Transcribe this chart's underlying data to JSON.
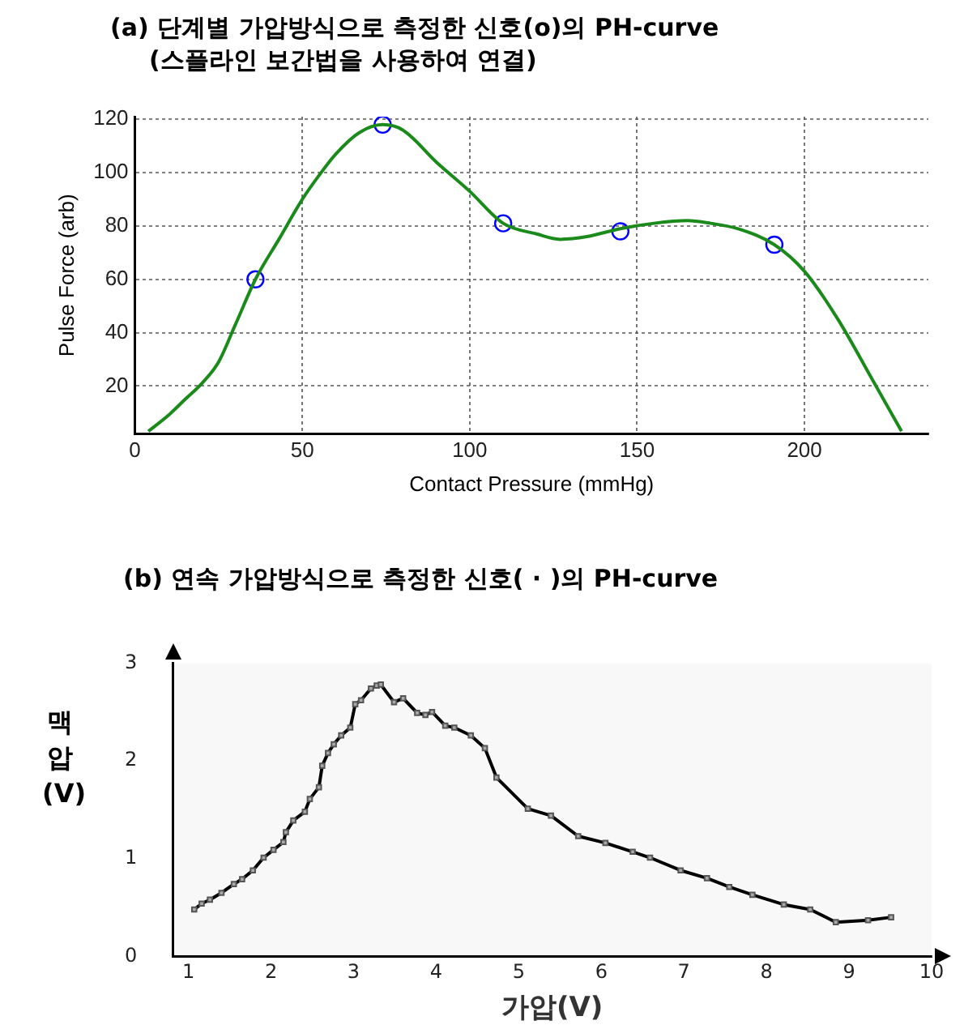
{
  "chart_data": [
    {
      "type": "line",
      "title": "(a) 단계별 가압방식으로 측정한 신호(o)의 PH-curve",
      "subtitle": "(스플라인 보간법을 사용하여 연결)",
      "xlabel": "Contact Pressure (mmHg)",
      "ylabel": "Pulse Force (arb)",
      "xlim": [
        0,
        237
      ],
      "ylim": [
        2,
        121
      ],
      "xticks": [
        0,
        50,
        100,
        150,
        200
      ],
      "yticks": [
        20,
        40,
        60,
        80,
        100,
        120
      ],
      "grid": true,
      "series": [
        {
          "type": "line",
          "color": "#1a8a1a",
          "marker": "none",
          "x": [
            4,
            10,
            15,
            20,
            25,
            30,
            36,
            43,
            50,
            55,
            60,
            67,
            74,
            80,
            90,
            100,
            110,
            120,
            127,
            135,
            145,
            155,
            165,
            172,
            180,
            191,
            200,
            210,
            220,
            229
          ],
          "values": [
            3,
            9,
            15,
            21,
            29,
            43,
            60,
            75,
            90,
            99,
            107,
            115,
            118,
            116,
            104,
            93,
            81,
            77,
            75,
            76,
            79,
            81,
            82,
            81,
            79,
            73,
            63,
            45,
            23,
            3
          ]
        },
        {
          "type": "scatter",
          "color": "#0000ff",
          "marker": "circle",
          "x": [
            36,
            74,
            110,
            145,
            191
          ],
          "values": [
            60,
            118,
            81,
            78,
            73
          ]
        }
      ]
    },
    {
      "type": "line",
      "title": "(b) 연속 가압방식으로 측정한 신호( · )의 PH-curve",
      "xlabel": "가압(V)",
      "ylabel": "맥압 (V)",
      "xlim": [
        0.81,
        10
      ],
      "ylim": [
        0,
        3
      ],
      "xticks": [
        1,
        2,
        3,
        4,
        5,
        6,
        7,
        8,
        9,
        10
      ],
      "yticks": [
        0,
        1,
        2,
        3
      ],
      "grid": false,
      "series": [
        {
          "type": "line",
          "color": "#000000",
          "marker": "square",
          "x": [
            1.07,
            1.16,
            1.26,
            1.4,
            1.55,
            1.65,
            1.78,
            1.91,
            2.03,
            2.15,
            2.18,
            2.27,
            2.41,
            2.47,
            2.58,
            2.62,
            2.69,
            2.76,
            2.85,
            2.96,
            3.02,
            3.09,
            3.21,
            3.28,
            3.33,
            3.49,
            3.6,
            3.77,
            3.87,
            3.95,
            4.11,
            4.22,
            4.42,
            4.59,
            4.73,
            5.11,
            5.39,
            5.72,
            6.05,
            6.38,
            6.59,
            6.96,
            7.28,
            7.55,
            7.83,
            8.21,
            8.53,
            8.84,
            9.23,
            9.51
          ],
          "values": [
            0.48,
            0.54,
            0.58,
            0.65,
            0.74,
            0.79,
            0.88,
            1.01,
            1.09,
            1.17,
            1.27,
            1.39,
            1.48,
            1.61,
            1.73,
            1.95,
            2.08,
            2.17,
            2.26,
            2.34,
            2.58,
            2.62,
            2.74,
            2.77,
            2.78,
            2.6,
            2.64,
            2.49,
            2.47,
            2.5,
            2.36,
            2.34,
            2.26,
            2.13,
            1.83,
            1.51,
            1.44,
            1.23,
            1.16,
            1.07,
            1.01,
            0.88,
            0.8,
            0.71,
            0.63,
            0.53,
            0.48,
            0.35,
            0.37,
            0.4
          ]
        }
      ]
    }
  ]
}
